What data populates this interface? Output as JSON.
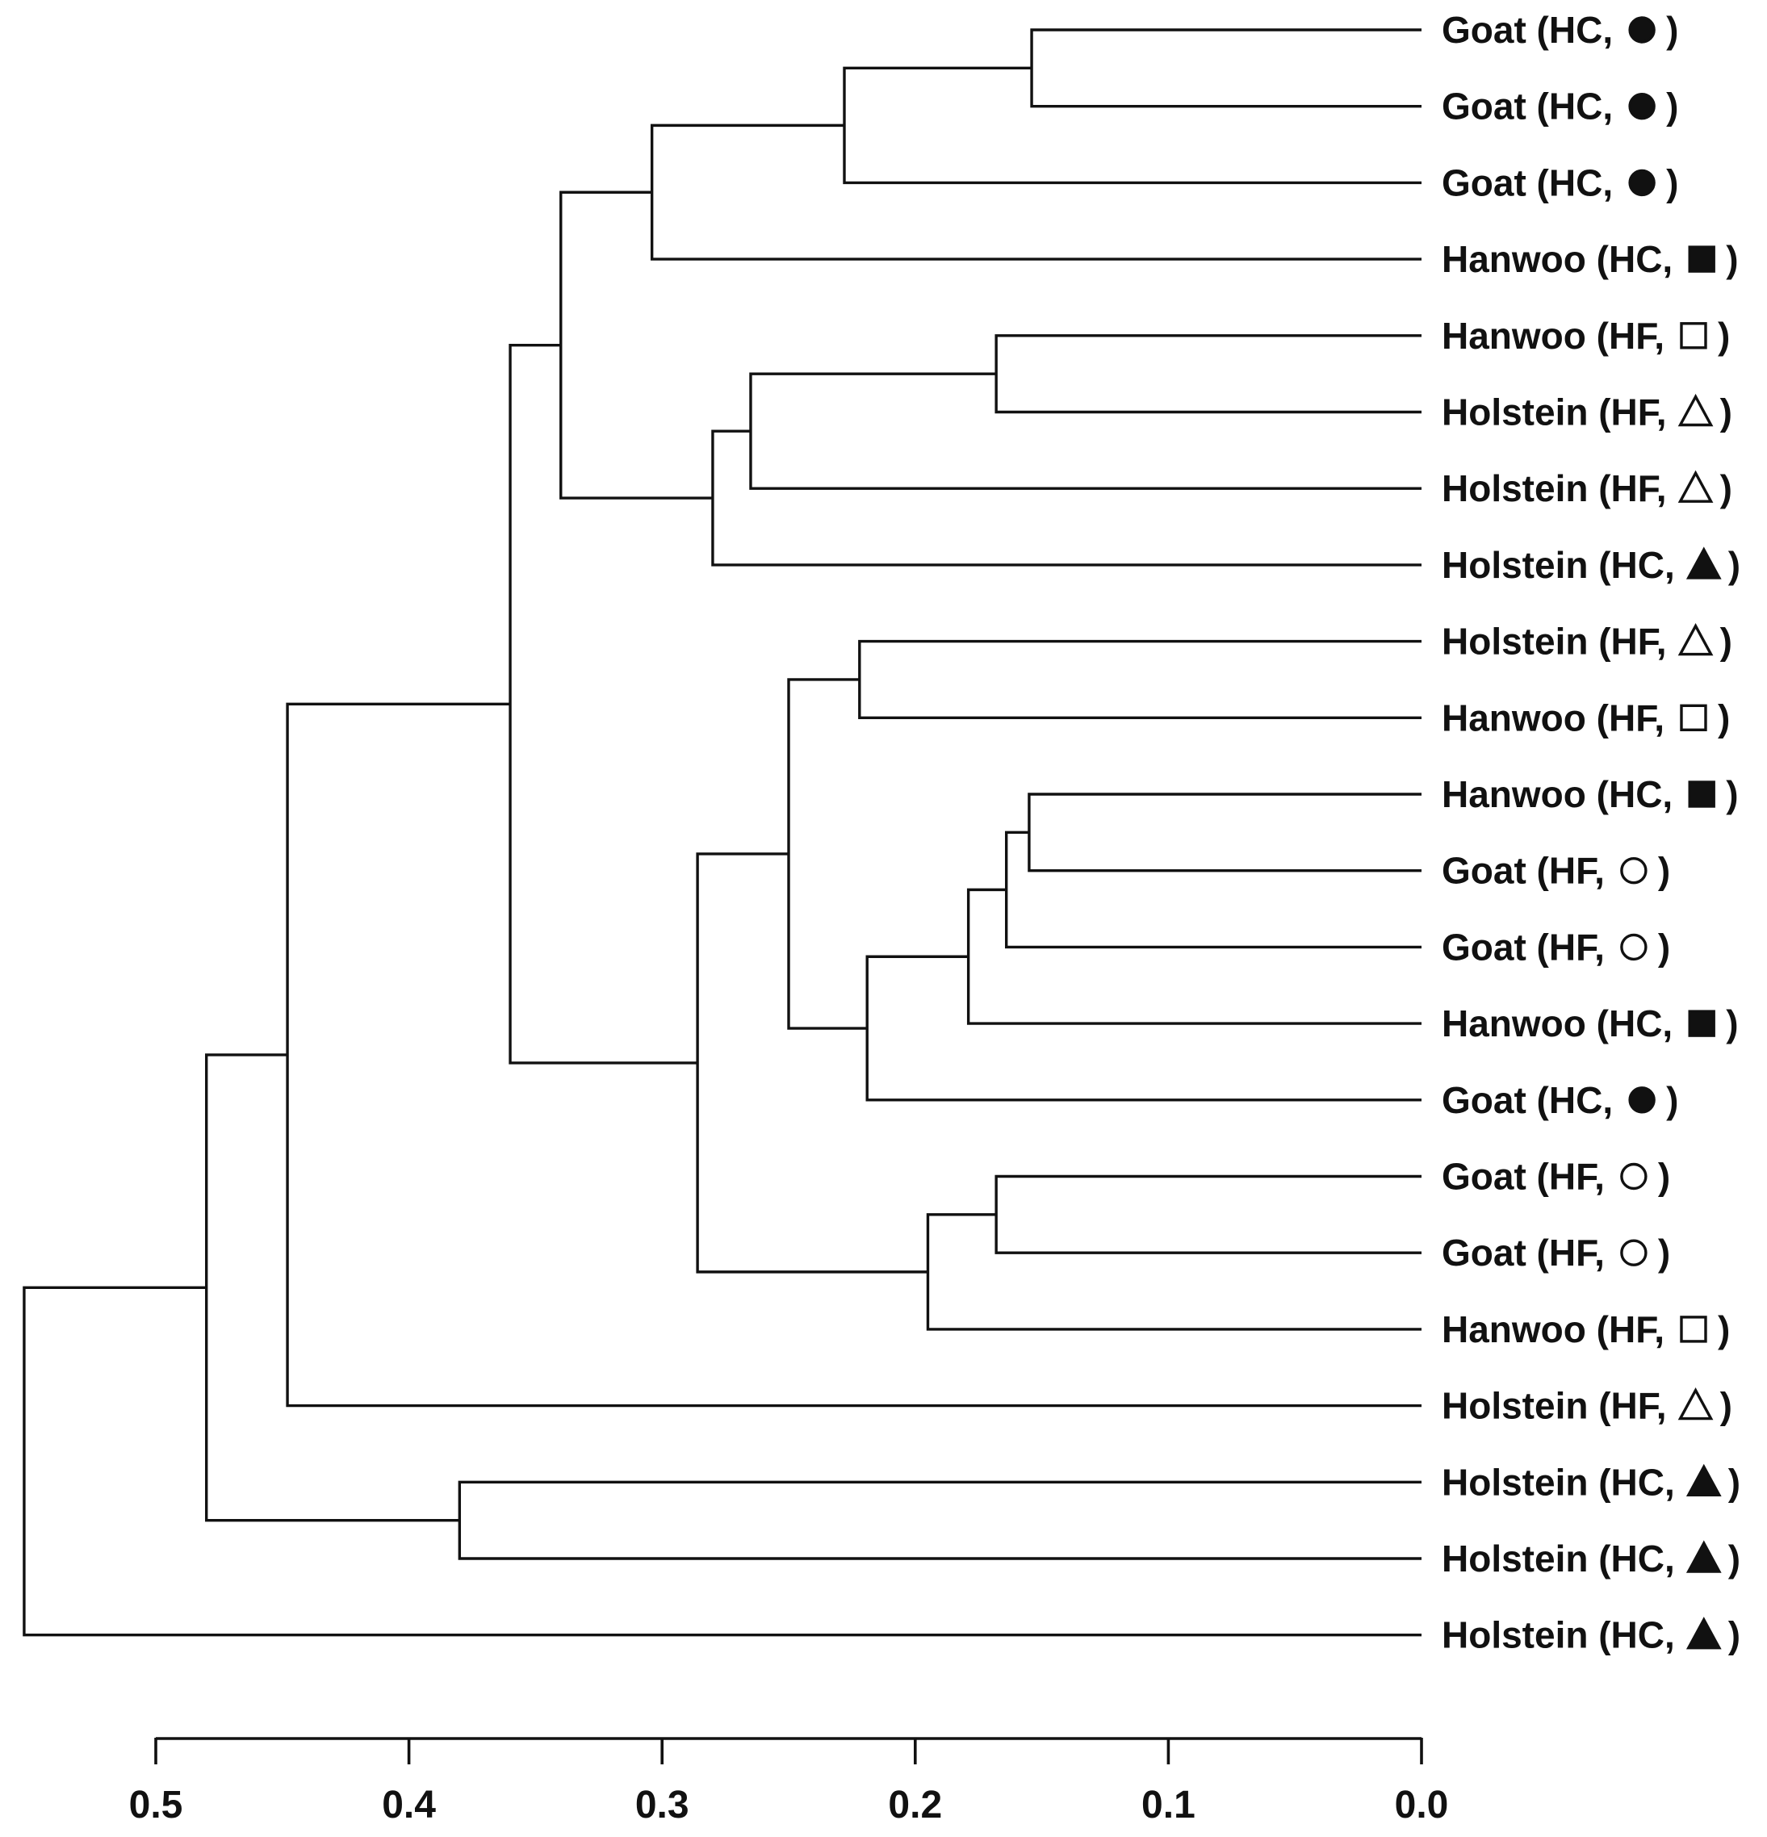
{
  "colors": {
    "ink": "#111111",
    "background": "#ffffff"
  },
  "chart_data": {
    "type": "dendrogram",
    "axis": {
      "ticks": [
        "0.5",
        "0.4",
        "0.3",
        "0.2",
        "0.1",
        "0.0"
      ],
      "range": [
        0.5,
        0.0
      ]
    },
    "leaves": [
      {
        "name": "Goat",
        "group": "HC",
        "marker": "filled-circle"
      },
      {
        "name": "Goat",
        "group": "HC",
        "marker": "filled-circle"
      },
      {
        "name": "Goat",
        "group": "HC",
        "marker": "filled-circle"
      },
      {
        "name": "Hanwoo",
        "group": "HC",
        "marker": "filled-square"
      },
      {
        "name": "Hanwoo",
        "group": "HF",
        "marker": "open-square"
      },
      {
        "name": "Holstein",
        "group": "HF",
        "marker": "open-triangle"
      },
      {
        "name": "Holstein",
        "group": "HF",
        "marker": "open-triangle"
      },
      {
        "name": "Holstein",
        "group": "HC",
        "marker": "filled-triangle"
      },
      {
        "name": "Holstein",
        "group": "HF",
        "marker": "open-triangle"
      },
      {
        "name": "Hanwoo",
        "group": "HF",
        "marker": "open-square"
      },
      {
        "name": "Hanwoo",
        "group": "HC",
        "marker": "filled-square"
      },
      {
        "name": "Goat",
        "group": "HF",
        "marker": "open-circle"
      },
      {
        "name": "Goat",
        "group": "HF",
        "marker": "open-circle"
      },
      {
        "name": "Hanwoo",
        "group": "HC",
        "marker": "filled-square"
      },
      {
        "name": "Goat",
        "group": "HC",
        "marker": "filled-circle"
      },
      {
        "name": "Goat",
        "group": "HF",
        "marker": "open-circle"
      },
      {
        "name": "Goat",
        "group": "HF",
        "marker": "open-circle"
      },
      {
        "name": "Hanwoo",
        "group": "HF",
        "marker": "open-square"
      },
      {
        "name": "Holstein",
        "group": "HF",
        "marker": "open-triangle"
      },
      {
        "name": "Holstein",
        "group": "HC",
        "marker": "filled-triangle"
      },
      {
        "name": "Holstein",
        "group": "HC",
        "marker": "filled-triangle"
      },
      {
        "name": "Holstein",
        "group": "HC",
        "marker": "filled-triangle"
      }
    ],
    "merges": [
      {
        "id": "n1",
        "children": [
          0,
          1
        ],
        "height": 0.154
      },
      {
        "id": "n2",
        "children": [
          "n1",
          2
        ],
        "height": 0.228
      },
      {
        "id": "n3",
        "children": [
          "n2",
          3
        ],
        "height": 0.304
      },
      {
        "id": "n4",
        "children": [
          4,
          5
        ],
        "height": 0.168
      },
      {
        "id": "n5",
        "children": [
          "n4",
          6
        ],
        "height": 0.265
      },
      {
        "id": "n6",
        "children": [
          "n5",
          7
        ],
        "height": 0.28
      },
      {
        "id": "n7",
        "children": [
          "n3",
          "n6"
        ],
        "height": 0.34
      },
      {
        "id": "n8",
        "children": [
          8,
          9
        ],
        "height": 0.222
      },
      {
        "id": "n9",
        "children": [
          10,
          11
        ],
        "height": 0.155
      },
      {
        "id": "n10",
        "children": [
          "n9",
          12
        ],
        "height": 0.164
      },
      {
        "id": "n11",
        "children": [
          "n10",
          13
        ],
        "height": 0.179
      },
      {
        "id": "n12",
        "children": [
          "n11",
          14
        ],
        "height": 0.219
      },
      {
        "id": "n13",
        "children": [
          "n8",
          "n12"
        ],
        "height": 0.25
      },
      {
        "id": "n14",
        "children": [
          15,
          16
        ],
        "height": 0.168
      },
      {
        "id": "n15",
        "children": [
          "n14",
          17
        ],
        "height": 0.195
      },
      {
        "id": "n16",
        "children": [
          "n13",
          "n15"
        ],
        "height": 0.286
      },
      {
        "id": "n17",
        "children": [
          "n7",
          "n16"
        ],
        "height": 0.36
      },
      {
        "id": "n18",
        "children": [
          "n17",
          18
        ],
        "height": 0.448
      },
      {
        "id": "n19",
        "children": [
          19,
          20
        ],
        "height": 0.38
      },
      {
        "id": "n20",
        "children": [
          "n18",
          "n19"
        ],
        "height": 0.48
      },
      {
        "id": "n21",
        "children": [
          "n20",
          21
        ],
        "height": 0.552
      }
    ]
  }
}
